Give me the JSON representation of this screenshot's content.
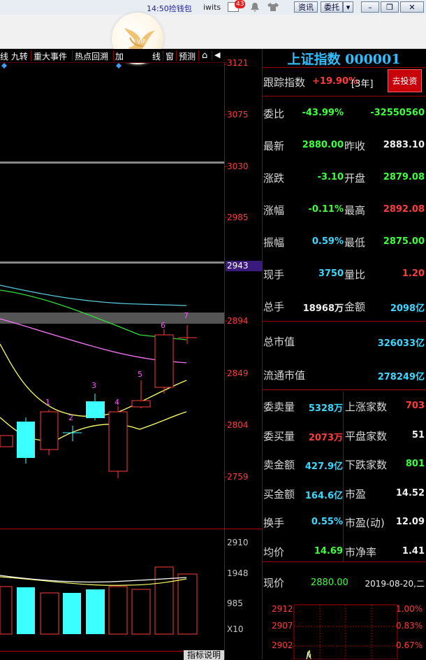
{
  "titlebar": {
    "time_promo": "14:50捡钱包",
    "user": "iwits",
    "mail_count": "43",
    "news_btn": "资讯",
    "entrust_btn": "委托",
    "dropdown_glyph": "▾",
    "min_glyph": "–",
    "restore_glyph": "❐",
    "close_glyph": "✕"
  },
  "logo": {
    "text": "VIP"
  },
  "tabs": [
    "线 九转",
    "重大事件",
    "热点回溯",
    "加",
    "线",
    "窗",
    "预测"
  ],
  "tab_icons": [
    "⌂",
    "◀"
  ],
  "price_axis": [
    "3121",
    "3075",
    "3030",
    "2985",
    "2943",
    "2894",
    "2849",
    "2804",
    "2759"
  ],
  "volume_axis": [
    "2910",
    "1948",
    "985",
    "X10"
  ],
  "candle_labels": [
    "1",
    "2",
    "3",
    "4",
    "5",
    "6",
    "7"
  ],
  "indicator_btn": "指标说明",
  "panel": {
    "title": "上证指数 000001",
    "track_label": "跟踪指数",
    "track_value": "+19.90%",
    "track_period": "[3年]",
    "invest_btn": "去投资",
    "rows": [
      {
        "l1": "委比",
        "v1": "-43.99%",
        "c1": "grn",
        "l2": "",
        "v2": "-32550560",
        "c2": "grn"
      },
      {
        "l1": "最新",
        "v1": "2880.00",
        "c1": "grn",
        "l2": "昨收",
        "v2": "2883.10",
        "c2": "wht"
      },
      {
        "l1": "涨跌",
        "v1": "-3.10",
        "c1": "grn",
        "l2": "开盘",
        "v2": "2879.08",
        "c2": "grn"
      },
      {
        "l1": "涨幅",
        "v1": "-0.11%",
        "c1": "grn",
        "l2": "最高",
        "v2": "2892.08",
        "c2": "red"
      },
      {
        "l1": "振幅",
        "v1": "0.59%",
        "c1": "cyan",
        "l2": "最低",
        "v2": "2875.00",
        "c2": "grn"
      },
      {
        "l1": "现手",
        "v1": "3750",
        "c1": "cyan",
        "l2": "量比",
        "v2": "1.20",
        "c2": "red"
      },
      {
        "l1": "总手",
        "v1": "18968万",
        "c1": "wht",
        "l2": "金额",
        "v2": "2098亿",
        "c2": "cyan"
      }
    ],
    "mcap": [
      {
        "l": "总市值",
        "v": "326033亿"
      },
      {
        "l": "流通市值",
        "v": "278249亿"
      }
    ],
    "stats": [
      {
        "l1": "委卖量",
        "v1": "5328万",
        "c1": "cyan",
        "l2": "上涨家数",
        "v2": "703",
        "c2": "red"
      },
      {
        "l1": "委买量",
        "v1": "2073万",
        "c1": "red",
        "l2": "平盘家数",
        "v2": "51",
        "c2": "wht"
      },
      {
        "l1": "卖金额",
        "v1": "427.9亿",
        "c1": "cyan",
        "l2": "下跌家数",
        "v2": "801",
        "c2": "grn"
      },
      {
        "l1": "买金额",
        "v1": "164.6亿",
        "c1": "cyan",
        "l2": "市盈",
        "v2": "14.52",
        "c2": "wht"
      },
      {
        "l1": "换手",
        "v1": "0.55%",
        "c1": "cyan",
        "l2": "市盈(动)",
        "v2": "12.09",
        "c2": "wht"
      },
      {
        "l1": "均价",
        "v1": "14.69",
        "c1": "grn",
        "l2": "市净率",
        "v2": "1.41",
        "c2": "wht"
      }
    ],
    "current_label": "现价",
    "current_value": "2880.00",
    "current_date": "2019-08-20,二",
    "mini_left": [
      "2912",
      "2907",
      "2902"
    ],
    "mini_right": [
      "1.00%",
      "0.83%",
      "0.67%"
    ]
  },
  "colors": {
    "up": "#ff3c3c",
    "down": "#3cffff",
    "ma1": "#ffff66",
    "ma2": "#ff77ff",
    "ma3": "#33dd33",
    "ma4": "#55ccdd"
  }
}
